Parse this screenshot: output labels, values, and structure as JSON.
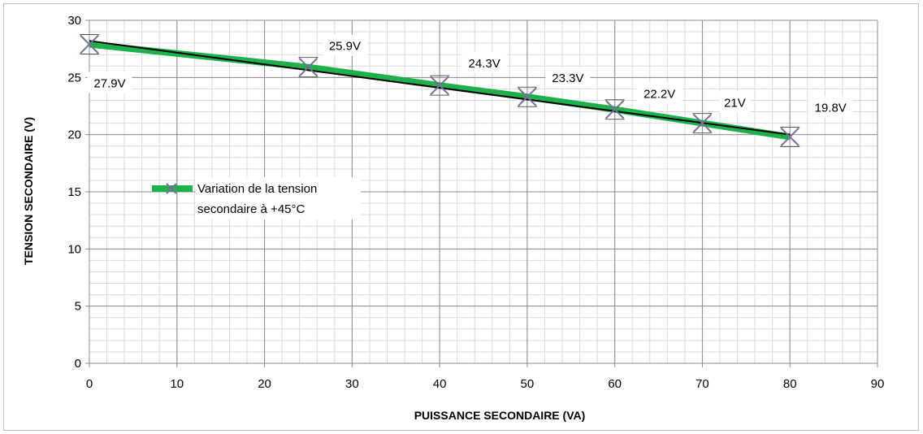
{
  "chart_data": {
    "type": "line",
    "title": "",
    "xlabel": "PUISSANCE SECONDAIRE (VA)",
    "ylabel": "TENSION SECONDAIRE (V)",
    "xlim": [
      0,
      90
    ],
    "ylim": [
      0,
      30
    ],
    "x_ticks": [
      0,
      10,
      20,
      30,
      40,
      50,
      60,
      70,
      80,
      90
    ],
    "y_ticks": [
      0,
      5,
      10,
      15,
      20,
      25,
      30
    ],
    "grid": "major and minor",
    "legend_position": "left",
    "series": [
      {
        "name": "Variation de la tension secondaire à +45°C",
        "color": "#1db04b",
        "marker": "x",
        "marker_color": "#7b6a9b",
        "x": [
          0,
          25,
          40,
          50,
          60,
          70,
          80
        ],
        "y": [
          27.9,
          25.9,
          24.3,
          23.3,
          22.2,
          21,
          19.8
        ],
        "labels": [
          "27.9V",
          "25.9V",
          "24.3V",
          "23.3V",
          "22.2V",
          "21V",
          "19.8V"
        ]
      }
    ],
    "trendline": {
      "type": "linear",
      "color": "#000000",
      "start": [
        0,
        28.2
      ],
      "end": [
        80,
        20.0
      ]
    }
  },
  "legend": {
    "line1": "Variation de la tension",
    "line2": "secondaire à +45°C"
  }
}
